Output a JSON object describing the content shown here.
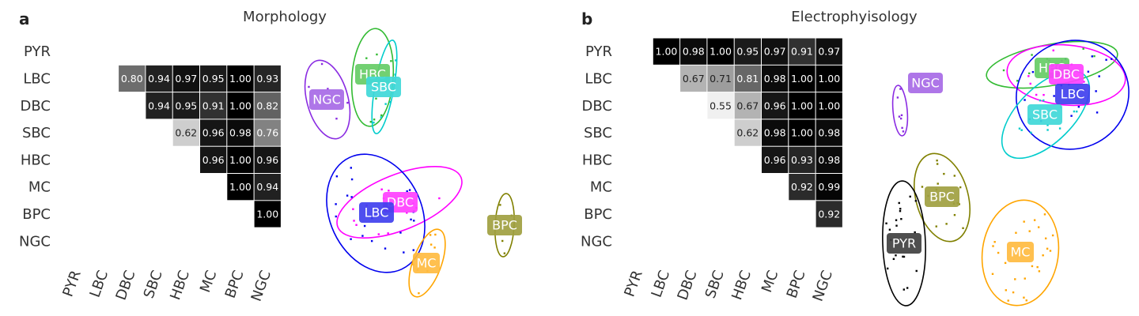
{
  "chart_data": [
    {
      "type": "heatmap",
      "panel": "a",
      "title": "Morphology",
      "row_labels": [
        "PYR",
        "LBC",
        "DBC",
        "SBC",
        "HBC",
        "MC",
        "BPC",
        "NGC"
      ],
      "col_labels": [
        "PYR",
        "LBC",
        "DBC",
        "SBC",
        "HBC",
        "MC",
        "BPC",
        "NGC"
      ],
      "matrix": [
        [
          null,
          null,
          null,
          null,
          null,
          null,
          null,
          null
        ],
        [
          null,
          null,
          0.8,
          0.94,
          0.97,
          0.95,
          1.0,
          0.93
        ],
        [
          null,
          null,
          null,
          0.94,
          0.95,
          0.91,
          1.0,
          0.82
        ],
        [
          null,
          null,
          null,
          null,
          0.62,
          0.96,
          0.98,
          0.76
        ],
        [
          null,
          null,
          null,
          null,
          null,
          0.96,
          1.0,
          0.96
        ],
        [
          null,
          null,
          null,
          null,
          null,
          null,
          1.0,
          0.94
        ],
        [
          null,
          null,
          null,
          null,
          null,
          null,
          null,
          1.0
        ],
        [
          null,
          null,
          null,
          null,
          null,
          null,
          null,
          null
        ]
      ]
    },
    {
      "type": "scatter",
      "panel": "a",
      "clusters": [
        {
          "name": "NGC",
          "color": "#8a2be2",
          "badge": "#a76ae6"
        },
        {
          "name": "HBC",
          "color": "#33bb33",
          "badge": "#66cc66"
        },
        {
          "name": "SBC",
          "color": "#00cccc",
          "badge": "#40d8d8"
        },
        {
          "name": "DBC",
          "color": "#ff00ff",
          "badge": "#ff40ff"
        },
        {
          "name": "LBC",
          "color": "#0000ee",
          "badge": "#4040ee"
        },
        {
          "name": "MC",
          "color": "#ffa500",
          "badge": "#ffbb40"
        },
        {
          "name": "BPC",
          "color": "#808000",
          "badge": "#a0a040"
        }
      ]
    },
    {
      "type": "heatmap",
      "panel": "b",
      "title": "Electrophyisology",
      "row_labels": [
        "PYR",
        "LBC",
        "DBC",
        "SBC",
        "HBC",
        "MC",
        "BPC",
        "NGC"
      ],
      "col_labels": [
        "PYR",
        "LBC",
        "DBC",
        "SBC",
        "HBC",
        "MC",
        "BPC",
        "NGC"
      ],
      "matrix": [
        [
          null,
          1.0,
          0.98,
          1.0,
          0.95,
          0.97,
          0.91,
          0.97
        ],
        [
          null,
          null,
          0.67,
          0.71,
          0.81,
          0.98,
          1.0,
          1.0
        ],
        [
          null,
          null,
          null,
          0.55,
          0.67,
          0.96,
          1.0,
          1.0
        ],
        [
          null,
          null,
          null,
          null,
          0.62,
          0.98,
          1.0,
          0.98
        ],
        [
          null,
          null,
          null,
          null,
          null,
          0.96,
          0.93,
          0.98
        ],
        [
          null,
          null,
          null,
          null,
          null,
          null,
          0.92,
          0.99
        ],
        [
          null,
          null,
          null,
          null,
          null,
          null,
          null,
          0.92
        ],
        [
          null,
          null,
          null,
          null,
          null,
          null,
          null,
          null
        ]
      ]
    },
    {
      "type": "scatter",
      "panel": "b",
      "clusters": [
        {
          "name": "NGC",
          "color": "#8a2be2",
          "badge": "#a76ae6"
        },
        {
          "name": "HBC",
          "color": "#33bb33",
          "badge": "#66cc66"
        },
        {
          "name": "DBC",
          "color": "#ff00ff",
          "badge": "#ff40ff"
        },
        {
          "name": "LBC",
          "color": "#0000ee",
          "badge": "#4040ee"
        },
        {
          "name": "SBC",
          "color": "#00cccc",
          "badge": "#40d8d8"
        },
        {
          "name": "BPC",
          "color": "#808000",
          "badge": "#a0a040"
        },
        {
          "name": "PYR",
          "color": "#000000",
          "badge": "#404040"
        },
        {
          "name": "MC",
          "color": "#ffa500",
          "badge": "#ffbb40"
        }
      ]
    }
  ]
}
